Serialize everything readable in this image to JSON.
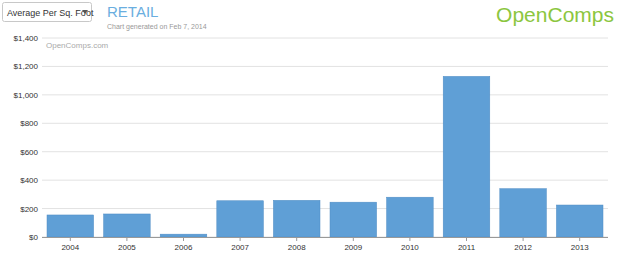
{
  "chart_data": {
    "type": "bar",
    "title": "RETAIL",
    "subtitle": "Chart generated on Feb 7, 2014",
    "annotations": [
      "Average Per Sq. Foot",
      "OpenComps",
      "OpenComps.com"
    ],
    "categories": [
      "2004",
      "2005",
      "2006",
      "2007",
      "2008",
      "2009",
      "2010",
      "2011",
      "2012",
      "2013"
    ],
    "values": [
      155,
      162,
      20,
      255,
      258,
      245,
      280,
      1130,
      340,
      225
    ],
    "color": "#5f9fd6",
    "ylim": [
      0,
      1400
    ],
    "yticks": [
      {
        "value": 0,
        "label": "$0"
      },
      {
        "value": 200,
        "label": "$200"
      },
      {
        "value": 400,
        "label": "$400"
      },
      {
        "value": 600,
        "label": "$600"
      },
      {
        "value": 800,
        "label": "$800"
      },
      {
        "value": 1000,
        "label": "$1,000"
      },
      {
        "value": 1200,
        "label": "$1,200"
      },
      {
        "value": 1400,
        "label": "$1,400"
      }
    ],
    "grid": true
  }
}
